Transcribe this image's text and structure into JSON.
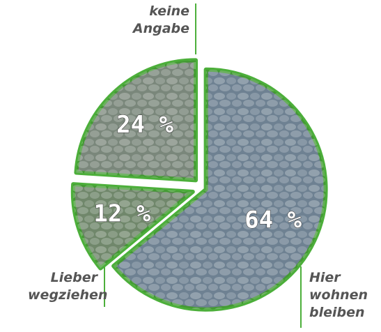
{
  "chart_data": {
    "type": "pie",
    "categories": [
      "Hier wohnen bleiben",
      "Lieber wegziehen",
      "keine Angabe"
    ],
    "values": [
      64,
      12,
      24
    ],
    "value_labels": [
      "64 %",
      "12 %",
      "24 %"
    ],
    "colors": [
      "#7d93a6",
      "#7f9a7a",
      "#8b9a8c"
    ],
    "edge_color": "#4caf3a"
  }
}
